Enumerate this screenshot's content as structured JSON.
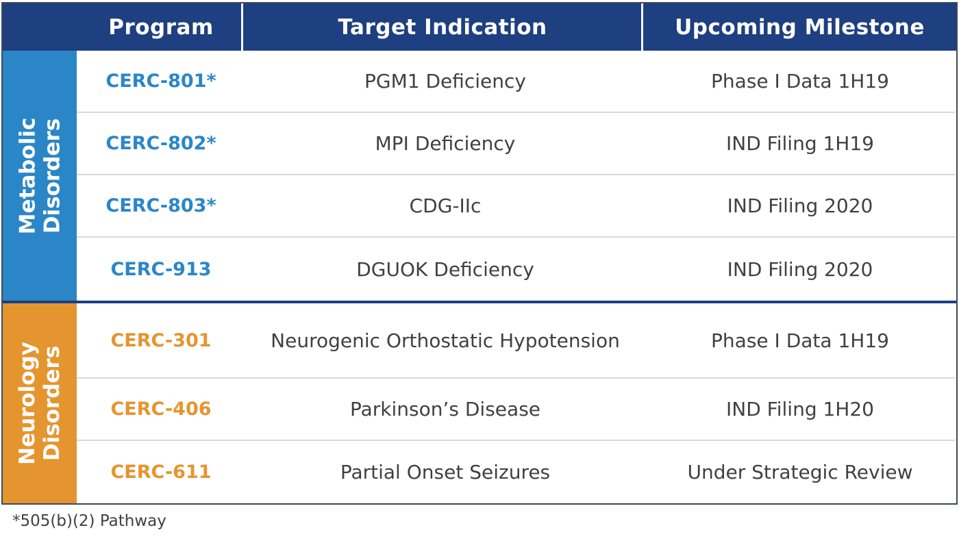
{
  "table": {
    "headers": {
      "program": "Program",
      "indication": "Target Indication",
      "milestone": "Upcoming Milestone"
    },
    "groups": [
      {
        "label": "Metabolic\nDisorders",
        "color": "#2b86c8",
        "rows": [
          {
            "program": "CERC-801*",
            "indication": "PGM1 Deficiency",
            "milestone": "Phase I Data 1H19"
          },
          {
            "program": "CERC-802*",
            "indication": "MPI Deficiency",
            "milestone": "IND Filing 1H19"
          },
          {
            "program": "CERC-803*",
            "indication": "CDG-IIc",
            "milestone": "IND Filing 2020"
          },
          {
            "program": "CERC-913",
            "indication": "DGUOK Deficiency",
            "milestone": "IND Filing 2020"
          }
        ]
      },
      {
        "label": "Neurology\nDisorders",
        "color": "#e5952f",
        "rows": [
          {
            "program": "CERC-301",
            "indication": "Neurogenic Orthostatic Hypotension",
            "milestone": "Phase I Data 1H19"
          },
          {
            "program": "CERC-406",
            "indication": "Parkinson’s Disease",
            "milestone": "IND Filing 1H20"
          },
          {
            "program": "CERC-611",
            "indication": "Partial Onset Seizures",
            "milestone": "Under Strategic Review"
          }
        ]
      }
    ]
  },
  "footnote": "*505(b)(2) Pathway",
  "colors": {
    "header_bg": "#1e3f80",
    "metabolic": "#2b86c8",
    "neurology": "#e5952f",
    "body_text": "#404040"
  }
}
